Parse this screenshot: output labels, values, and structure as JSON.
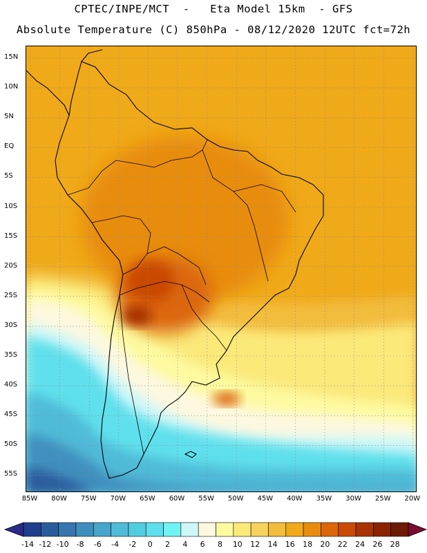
{
  "header": {
    "line1": "CPTEC/INPE/MCT  -   Eta Model 15km  - GFS",
    "line2": "Absolute Temperature (C) 850hPa - 08/12/2020 12UTC fct=72h"
  },
  "map": {
    "region": "South America",
    "variable": "Absolute Temperature",
    "units": "C",
    "level": "850hPa",
    "lat_labels": [
      "15N",
      "10N",
      "5N",
      "EQ",
      "5S",
      "10S",
      "15S",
      "20S",
      "25S",
      "30S",
      "35S",
      "40S",
      "45S",
      "50S",
      "55S"
    ],
    "lon_labels": [
      "85W",
      "80W",
      "75W",
      "70W",
      "65W",
      "60W",
      "55W",
      "50W",
      "45W",
      "40W",
      "35W",
      "30W",
      "25W",
      "20W"
    ]
  },
  "legend": {
    "ticks": [
      "-14",
      "-12",
      "-10",
      "-8",
      "-6",
      "-4",
      "-2",
      "0",
      "2",
      "4",
      "6",
      "8",
      "10",
      "12",
      "14",
      "16",
      "18",
      "20",
      "22",
      "24",
      "26",
      "28"
    ],
    "colors": [
      "#1f3f8c",
      "#2a5c9c",
      "#3675ae",
      "#3f8fbe",
      "#48a6cb",
      "#4fbbd8",
      "#52cde0",
      "#5ee0ec",
      "#71f3f5",
      "#cff7f8",
      "#fdf8df",
      "#fdfaa0",
      "#fbe97a",
      "#f7d25e",
      "#f2bc3c",
      "#f0a918",
      "#e88c10",
      "#dc660a",
      "#c94a06",
      "#a83304",
      "#8a2402",
      "#6d1b04"
    ],
    "low_color": "#2a2a88",
    "high_color": "#7a0c30"
  }
}
